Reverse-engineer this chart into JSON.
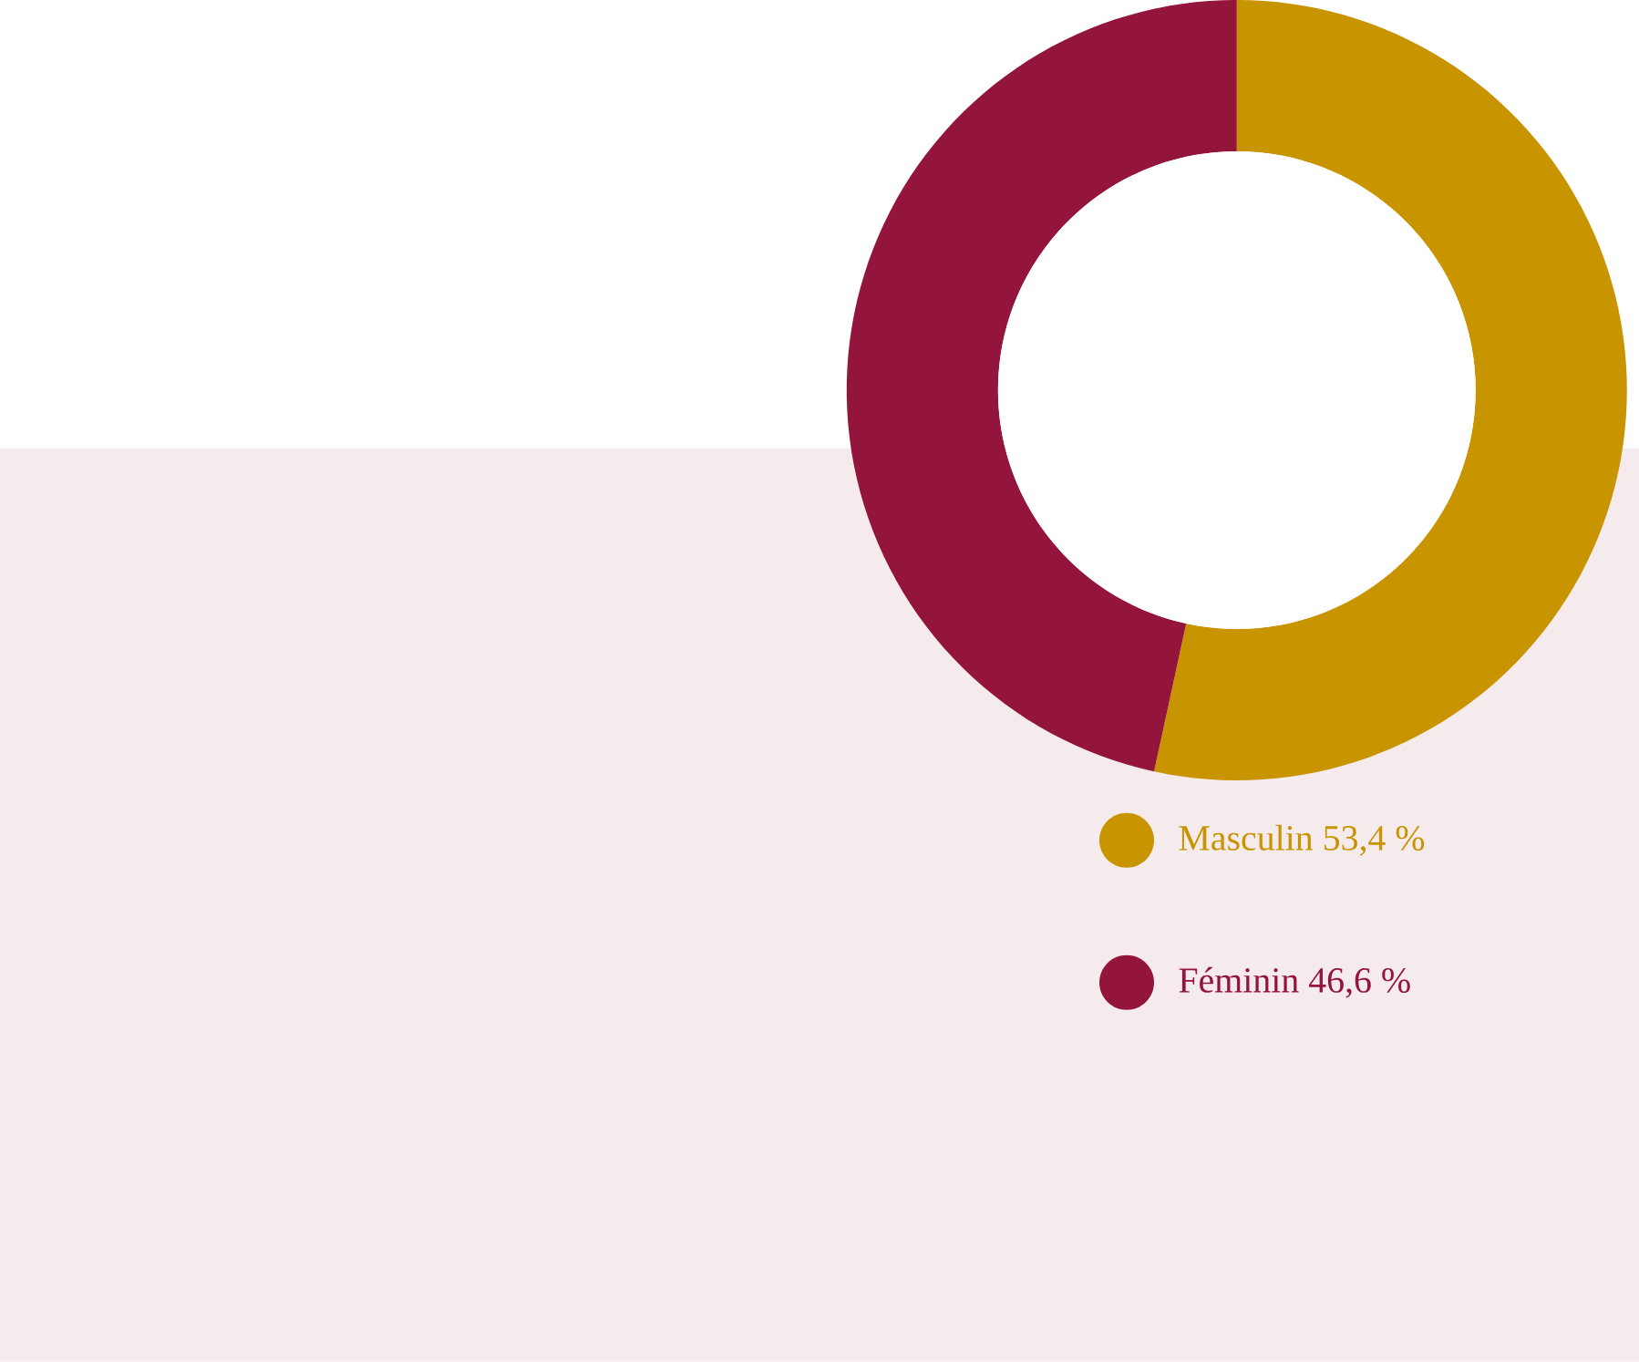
{
  "chart_data": {
    "type": "donut",
    "categories": [
      "Masculin",
      "Féminin"
    ],
    "values": [
      53.4,
      46.6
    ],
    "value_labels": [
      "53,4 %",
      "46,6 %"
    ],
    "colors": [
      "#c89400",
      "#93153c"
    ],
    "legend": "right"
  }
}
